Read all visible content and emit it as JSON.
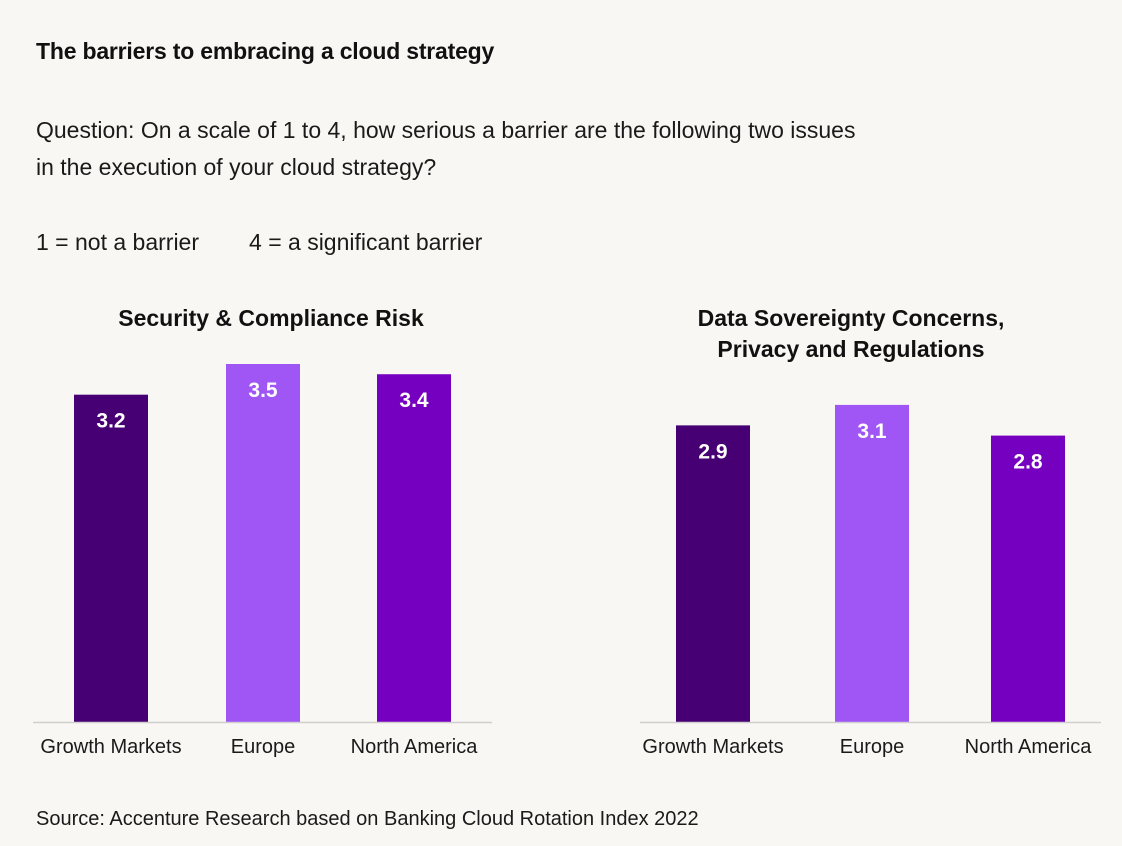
{
  "header": {
    "title": "The barriers to embracing a cloud strategy",
    "question_line1": "Question: On a scale of 1 to 4, how serious a barrier are the following two issues",
    "question_line2": "in the execution of your cloud strategy?",
    "scale_low": "1 = not a barrier",
    "scale_high": "4 = a significant barrier"
  },
  "footer": {
    "source": "Source: Accenture Research based on Banking Cloud Rotation Index 2022"
  },
  "colors": {
    "Growth Markets": "#460073",
    "Europe": "#a055f5",
    "North America": "#7500c0"
  },
  "chart_data": [
    {
      "type": "bar",
      "title_lines": [
        "Security & Compliance Risk"
      ],
      "categories": [
        "Growth Markets",
        "Europe",
        "North America"
      ],
      "values": [
        3.2,
        3.5,
        3.4
      ],
      "ylim": [
        0,
        3.5
      ],
      "grid": false
    },
    {
      "type": "bar",
      "title_lines": [
        "Data Sovereignty Concerns,",
        "Privacy and Regulations"
      ],
      "categories": [
        "Growth Markets",
        "Europe",
        "North America"
      ],
      "values": [
        2.9,
        3.1,
        2.8
      ],
      "ylim": [
        0,
        3.5
      ],
      "grid": false
    }
  ]
}
